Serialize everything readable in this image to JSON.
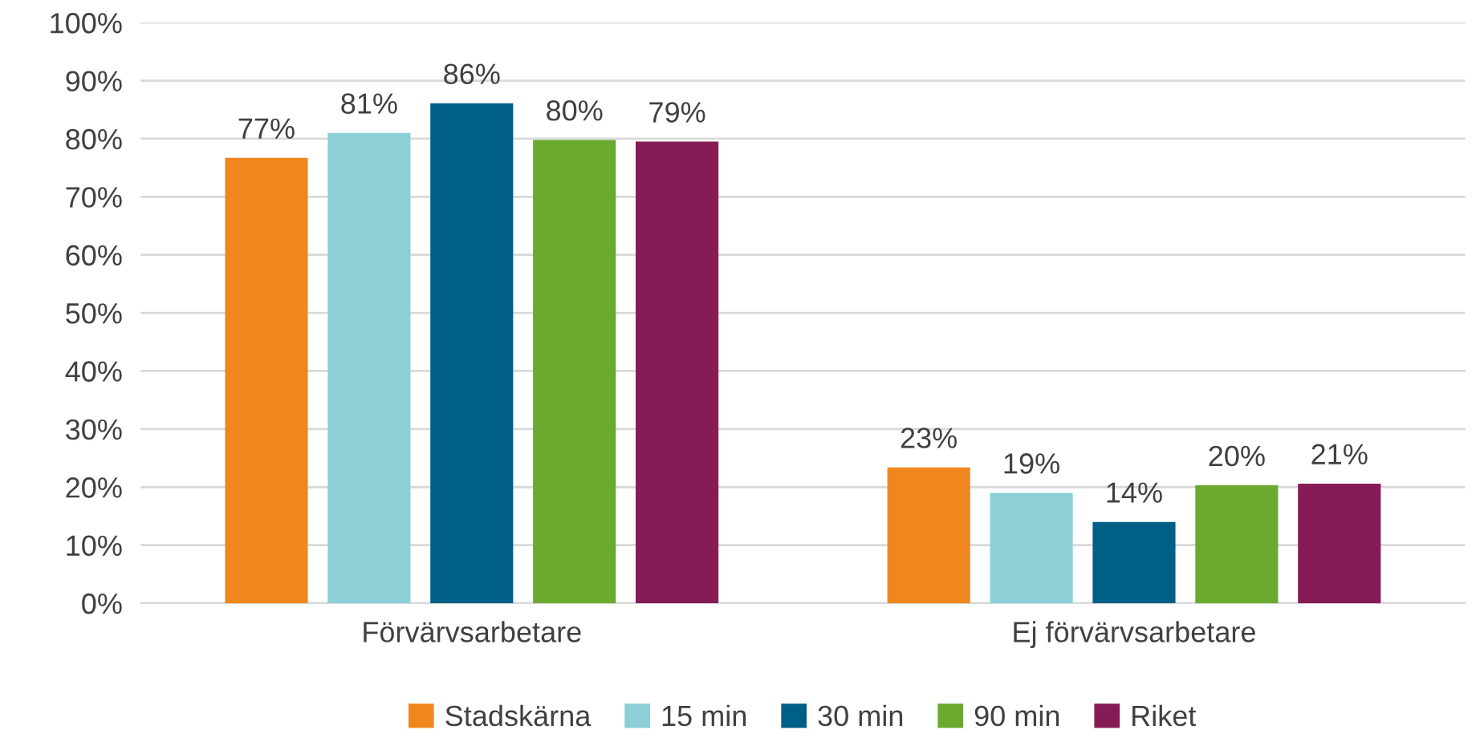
{
  "chart_data": {
    "type": "bar",
    "categories": [
      "Förvärvsarbetare",
      "Ej förvärvsarbetare"
    ],
    "series": [
      {
        "name": "Stadskärna",
        "color": "#f0861e",
        "values": [
          76.7,
          23.4
        ],
        "value_labels": [
          "77%",
          "23%"
        ]
      },
      {
        "name": "15 min",
        "color": "#8ccfd6",
        "values": [
          81,
          19
        ],
        "value_labels": [
          "81%",
          "19%"
        ]
      },
      {
        "name": "30 min",
        "color": "#005f87",
        "values": [
          86.1,
          14
        ],
        "value_labels": [
          "86%",
          "14%"
        ]
      },
      {
        "name": "90 min",
        "color": "#6aaa2f",
        "values": [
          79.8,
          20.3
        ],
        "value_labels": [
          "80%",
          "20%"
        ]
      },
      {
        "name": "Riket",
        "color": "#861c55",
        "values": [
          79.5,
          20.6
        ],
        "value_labels": [
          "79%",
          "21%"
        ]
      }
    ],
    "ylim": [
      0,
      100
    ],
    "yticks": [
      {
        "value": 0,
        "label": "0%"
      },
      {
        "value": 10,
        "label": "10%"
      },
      {
        "value": 20,
        "label": "20%"
      },
      {
        "value": 30,
        "label": "30%"
      },
      {
        "value": 40,
        "label": "40%"
      },
      {
        "value": 50,
        "label": "50%"
      },
      {
        "value": 60,
        "label": "60%"
      },
      {
        "value": 70,
        "label": "70%"
      },
      {
        "value": 80,
        "label": "80%"
      },
      {
        "value": 90,
        "label": "90%"
      },
      {
        "value": 100,
        "label": "100%"
      }
    ],
    "grid": "y",
    "legend": "bottom"
  }
}
